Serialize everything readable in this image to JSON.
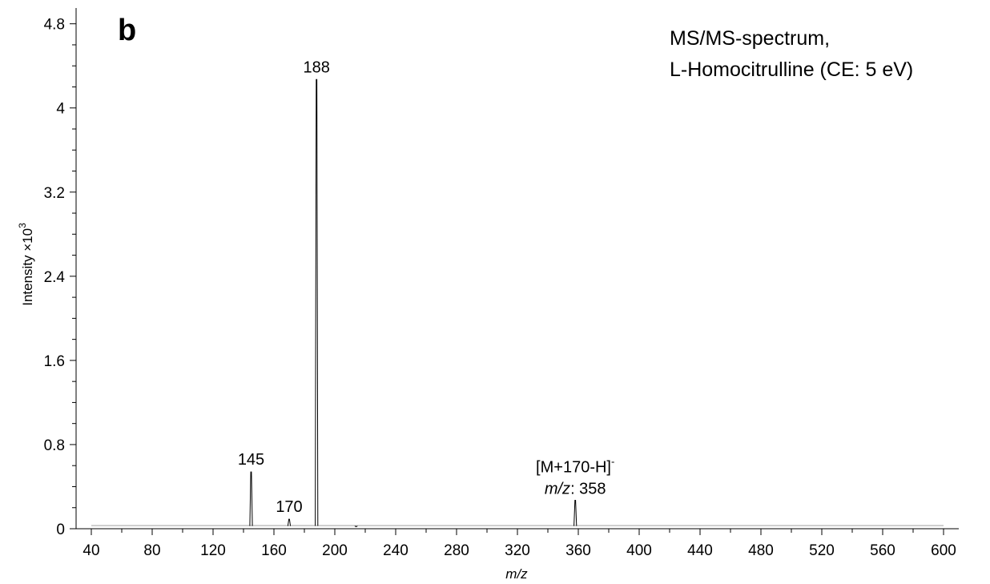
{
  "chart_data": {
    "type": "line",
    "panel_label": "b",
    "title_lines": [
      "MS/MS-spectrum,",
      "L-Homocitrulline (CE: 5 eV)"
    ],
    "xlabel": "m/z",
    "ylabel": {
      "main": "Intensity ×10",
      "exponent": "3"
    },
    "xlim": [
      30,
      610
    ],
    "ylim": [
      0,
      4.95
    ],
    "x_ticks": [
      40,
      80,
      120,
      160,
      200,
      240,
      280,
      320,
      360,
      400,
      440,
      480,
      520,
      560,
      600
    ],
    "y_ticks": [
      0,
      0.8,
      1.6,
      2.4,
      3.2,
      4,
      4.8
    ],
    "y_tick_labels": [
      "0",
      "0.8",
      "1.6",
      "2.4",
      "3.2",
      "4",
      "4.8"
    ],
    "baseline": 0.03,
    "spectrum_range": [
      40,
      600
    ],
    "peaks": [
      {
        "mz": 145,
        "intensity": 0.54
      },
      {
        "mz": 170,
        "intensity": 0.09
      },
      {
        "mz": 188,
        "intensity": 4.27
      },
      {
        "mz": 214,
        "intensity": 0.02
      },
      {
        "mz": 358,
        "intensity": 0.27
      }
    ],
    "annotations": [
      {
        "mz": 145,
        "text": "145"
      },
      {
        "mz": 170,
        "text": "170"
      },
      {
        "mz": 188,
        "text": "188"
      },
      {
        "mz": 358,
        "line1": "[M+170-H]",
        "line1_sup": "-",
        "line2_italic": "m/z",
        "line2_rest": ": 358"
      }
    ]
  },
  "colors": {
    "spectrum": "#000000",
    "baseline": "#bbbbbb",
    "axis": "#000000"
  }
}
